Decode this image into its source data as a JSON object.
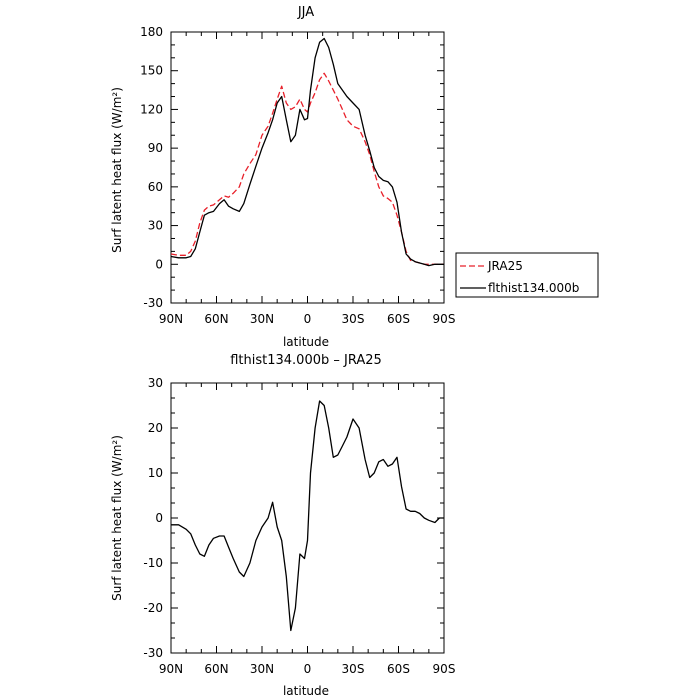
{
  "chart_data": [
    {
      "type": "line",
      "title": "JJA",
      "xlabel": "latitude",
      "ylabel": "Surf latent heat flux (W/m²)",
      "ylim": [
        -30,
        180
      ],
      "yticks": [
        -30,
        0,
        30,
        60,
        90,
        120,
        150,
        180
      ],
      "xlim": [
        90,
        -90
      ],
      "xticks": [
        90,
        60,
        30,
        0,
        -30,
        -60,
        -90
      ],
      "xticklabels": [
        "90N",
        "60N",
        "30N",
        "0",
        "30S",
        "60S",
        "90S"
      ],
      "legend_position": "right",
      "series": [
        {
          "name": "JRA25",
          "color": "#e8202a",
          "dash": true,
          "x": [
            90,
            85,
            80,
            77,
            74,
            71,
            68,
            65,
            62,
            58,
            55,
            52,
            49,
            45,
            42,
            38,
            34,
            30,
            26,
            23,
            20,
            17,
            14,
            11,
            8,
            5,
            2,
            0,
            -2,
            -5,
            -8,
            -11,
            -14,
            -17,
            -20,
            -23,
            -26,
            -30,
            -34,
            -38,
            -41,
            -44,
            -47,
            -50,
            -53,
            -56,
            -59,
            -62,
            -65,
            -68,
            -71,
            -74,
            -77,
            -80,
            -84,
            -87,
            -90
          ],
          "values": [
            8,
            7,
            7,
            10,
            18,
            32,
            42,
            45,
            46,
            50,
            53,
            52,
            55,
            60,
            70,
            78,
            85,
            100,
            107,
            117,
            128,
            138,
            125,
            120,
            122,
            128,
            120,
            118,
            125,
            133,
            143,
            148,
            142,
            135,
            128,
            120,
            112,
            107,
            105,
            95,
            85,
            72,
            60,
            53,
            51,
            48,
            38,
            25,
            10,
            3,
            2,
            1,
            0,
            0,
            0,
            0,
            0
          ]
        },
        {
          "name": "flthist134.000b",
          "color": "#000000",
          "dash": false,
          "x": [
            90,
            85,
            80,
            77,
            74,
            71,
            68,
            65,
            62,
            58,
            55,
            52,
            49,
            45,
            42,
            38,
            34,
            30,
            26,
            23,
            20,
            17,
            14,
            11,
            8,
            5,
            2,
            0,
            -2,
            -5,
            -8,
            -11,
            -14,
            -17,
            -20,
            -23,
            -26,
            -30,
            -34,
            -38,
            -41,
            -44,
            -47,
            -50,
            -53,
            -56,
            -59,
            -62,
            -65,
            -68,
            -71,
            -74,
            -77,
            -80,
            -84,
            -87,
            -90
          ],
          "values": [
            6,
            5,
            5,
            6,
            12,
            25,
            38,
            40,
            41,
            47,
            50,
            45,
            43,
            41,
            47,
            62,
            76,
            90,
            102,
            112,
            125,
            130,
            112,
            95,
            100,
            120,
            112,
            113,
            135,
            160,
            172,
            175,
            168,
            155,
            140,
            135,
            130,
            125,
            120,
            100,
            88,
            75,
            68,
            65,
            64,
            60,
            48,
            25,
            8,
            4,
            2,
            1,
            0,
            -1,
            0,
            0,
            0
          ]
        }
      ]
    },
    {
      "type": "line",
      "title": "flthist134.000b – JRA25",
      "xlabel": "latitude",
      "ylabel": "Surf latent heat flux (W/m²)",
      "ylim": [
        -30,
        30
      ],
      "yticks": [
        -30,
        -20,
        -10,
        0,
        10,
        20,
        30
      ],
      "xlim": [
        90,
        -90
      ],
      "xticks": [
        90,
        60,
        30,
        0,
        -30,
        -60,
        -90
      ],
      "xticklabels": [
        "90N",
        "60N",
        "30N",
        "0",
        "30S",
        "60S",
        "90S"
      ],
      "series": [
        {
          "color": "#000000",
          "dash": false,
          "x": [
            90,
            85,
            80,
            77,
            74,
            71,
            68,
            65,
            62,
            58,
            55,
            52,
            49,
            45,
            42,
            38,
            34,
            30,
            26,
            23,
            20,
            17,
            14,
            11,
            8,
            5,
            2,
            0,
            -2,
            -5,
            -8,
            -11,
            -14,
            -17,
            -20,
            -23,
            -26,
            -30,
            -34,
            -38,
            -41,
            -44,
            -47,
            -50,
            -53,
            -56,
            -59,
            -62,
            -65,
            -68,
            -71,
            -74,
            -77,
            -80,
            -84,
            -87,
            -90
          ],
          "values": [
            -1.5,
            -1.5,
            -2.5,
            -3.5,
            -6,
            -8,
            -8.5,
            -6,
            -4.5,
            -4,
            -4,
            -6.5,
            -9,
            -12,
            -13,
            -10,
            -5,
            -2,
            0,
            3.5,
            -2,
            -5,
            -13,
            -25,
            -20,
            -8,
            -9,
            -5,
            10,
            20,
            26,
            25,
            20,
            13.5,
            14,
            16,
            18,
            22,
            20,
            13,
            9,
            10,
            12.5,
            13,
            11.5,
            12,
            13.5,
            7,
            2,
            1.5,
            1.5,
            1,
            0,
            -0.5,
            -1,
            0,
            0
          ]
        }
      ]
    }
  ]
}
